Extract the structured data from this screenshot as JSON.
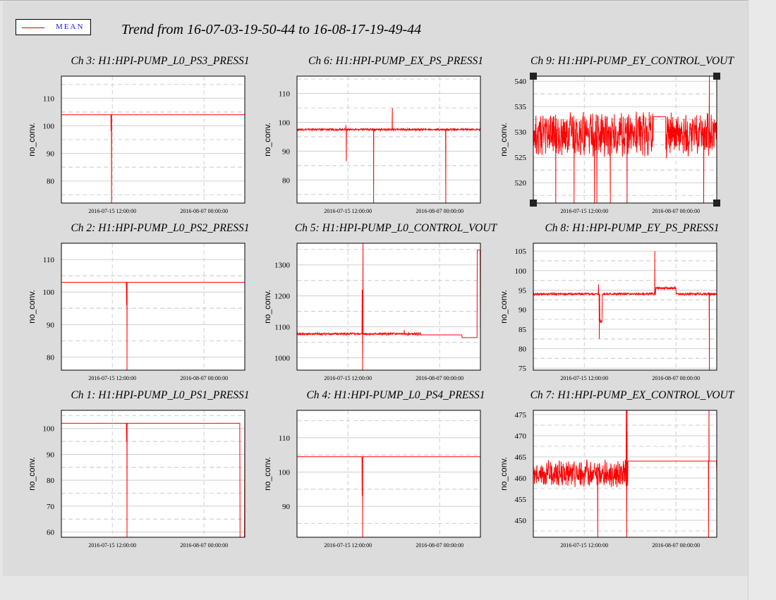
{
  "title": "Trend from 16-07-03-19-50-44 to 16-08-17-19-49-44",
  "legend": {
    "label": "MEAN",
    "color": "#d00000"
  },
  "colors": {
    "trace": "#ff0000",
    "grid": "#cfcfcf",
    "panel": "#dcdcdc"
  },
  "chart_data": [
    {
      "type": "line",
      "title": "Ch 3: H1:HPI-PUMP_L0_PS3_PRESS1",
      "ylabel": "no_conv.",
      "xticks": [
        "2016-07-15 12:00:00",
        "2016-08-07 00:00:00"
      ],
      "xlim": [
        0,
        45
      ],
      "ylim": [
        72,
        118
      ],
      "yticks": [
        80,
        90,
        100,
        110
      ],
      "grid": true,
      "series": [
        {
          "baseline": 104,
          "noise": 0,
          "spikes": [
            [
              12.2,
              98
            ],
            [
              12.3,
              72
            ],
            [
              12.4,
              104
            ]
          ],
          "steps": []
        }
      ]
    },
    {
      "type": "line",
      "title": "Ch 6: H1:HPI-PUMP_EX_PS_PRESS1",
      "ylabel": "no_conv.",
      "xticks": [
        "2016-07-15 12:00:00",
        "2016-08-07 00:00:00"
      ],
      "xlim": [
        0,
        45
      ],
      "ylim": [
        72,
        116
      ],
      "yticks": [
        80,
        90,
        100,
        110
      ],
      "grid": true,
      "series": [
        {
          "baseline": 97.5,
          "noise": 0.3,
          "spikes": [
            [
              12.0,
              99
            ],
            [
              12.1,
              86.5
            ],
            [
              12.2,
              97.5
            ],
            [
              18.8,
              72
            ],
            [
              23.4,
              105
            ],
            [
              36.5,
              72
            ]
          ],
          "steps": []
        }
      ]
    },
    {
      "type": "line",
      "title": "Ch 9: H1:HPI-PUMP_EY_CONTROL_VOUT",
      "ylabel": "no_conv.",
      "xticks": [
        "2016-07-15 12:00:00",
        "2016-08-07 00:00:00"
      ],
      "xlim": [
        0,
        45
      ],
      "ylim": [
        516,
        541
      ],
      "yticks": [
        520,
        525,
        530,
        535,
        540
      ],
      "grid": true,
      "selected": true,
      "series": [
        {
          "baseline": 529.5,
          "noise": 3.5,
          "spikes": [
            [
              5.5,
              516
            ],
            [
              10,
              516
            ],
            [
              15,
              516
            ],
            [
              15.6,
              516
            ],
            [
              18.9,
              516
            ],
            [
              23,
              516
            ],
            [
              41.8,
              516
            ],
            [
              43.2,
              541
            ]
          ],
          "steps": [
            [
              29.4,
              32.5,
              533
            ]
          ]
        }
      ]
    },
    {
      "type": "line",
      "title": "Ch 2: H1:HPI-PUMP_L0_PS2_PRESS1",
      "ylabel": "no_conv.",
      "xticks": [
        "2016-07-15 12:00:00",
        "2016-08-07 00:00:00"
      ],
      "xlim": [
        0,
        45
      ],
      "ylim": [
        76,
        115
      ],
      "yticks": [
        80,
        90,
        100,
        110
      ],
      "grid": true,
      "series": [
        {
          "baseline": 103,
          "noise": 0,
          "spikes": [
            [
              16.0,
              96
            ],
            [
              16.1,
              76
            ],
            [
              16.2,
              103
            ]
          ],
          "steps": []
        }
      ]
    },
    {
      "type": "line",
      "title": "Ch 5: H1:HPI-PUMP_L0_CONTROL_VOUT",
      "ylabel": "no_conv.",
      "xticks": [
        "2016-07-15 12:00:00",
        "2016-08-07 00:00:00"
      ],
      "xlim": [
        0,
        45
      ],
      "ylim": [
        960,
        1370
      ],
      "yticks": [
        1000,
        1100,
        1200,
        1300
      ],
      "grid": true,
      "series": [
        {
          "baseline": 1077,
          "noise": 3,
          "spikes": [
            [
              16.0,
              1220
            ],
            [
              16.1,
              960
            ],
            [
              16.2,
              1370
            ],
            [
              16.3,
              1077
            ],
            [
              26.3,
              1090
            ]
          ],
          "steps": [
            [
              30.5,
              40.5,
              1074
            ],
            [
              40.5,
              44.2,
              1065
            ],
            [
              44.2,
              45,
              1348
            ]
          ]
        }
      ]
    },
    {
      "type": "line",
      "title": "Ch 8: H1:HPI-PUMP_EY_PS_PRESS1",
      "ylabel": "no_conv.",
      "xticks": [
        "2016-07-15 12:00:00",
        "2016-08-07 00:00:00"
      ],
      "xlim": [
        0,
        45
      ],
      "ylim": [
        74.5,
        107
      ],
      "yticks": [
        75,
        80,
        85,
        90,
        95,
        100,
        105
      ],
      "grid": true,
      "series": [
        {
          "baseline": 94,
          "noise": 0.25,
          "spikes": [
            [
              16.0,
              96.5
            ],
            [
              16.2,
              82.5
            ],
            [
              16.4,
              87.5
            ],
            [
              29.8,
              105
            ],
            [
              43.2,
              74.5
            ]
          ],
          "steps": [
            [
              16.3,
              16.9,
              87
            ],
            [
              30.0,
              35.0,
              95.5
            ]
          ]
        }
      ]
    },
    {
      "type": "line",
      "title": "Ch 1: H1:HPI-PUMP_L0_PS1_PRESS1",
      "ylabel": "no_conv.",
      "xticks": [
        "2016-07-15 12:00:00",
        "2016-08-07 00:00:00"
      ],
      "xlim": [
        0,
        45
      ],
      "ylim": [
        58,
        107
      ],
      "yticks": [
        60,
        70,
        80,
        90,
        100
      ],
      "grid": true,
      "series": [
        {
          "baseline": 102,
          "noise": 0,
          "spikes": [
            [
              16.0,
              95
            ],
            [
              16.1,
              58
            ],
            [
              16.2,
              102
            ]
          ],
          "steps": [
            [
              43.8,
              45,
              58
            ]
          ]
        }
      ]
    },
    {
      "type": "line",
      "title": "Ch 4: H1:HPI-PUMP_L0_PS4_PRESS1",
      "ylabel": "no_conv.",
      "xticks": [
        "2016-07-15 12:00:00",
        "2016-08-07 00:00:00"
      ],
      "xlim": [
        0,
        45
      ],
      "ylim": [
        81,
        118
      ],
      "yticks": [
        90,
        100,
        110
      ],
      "grid": true,
      "series": [
        {
          "baseline": 104.5,
          "noise": 0,
          "spikes": [
            [
              16.0,
              93
            ],
            [
              16.1,
              81
            ],
            [
              16.2,
              104.5
            ]
          ],
          "steps": []
        }
      ]
    },
    {
      "type": "line",
      "title": "Ch 7: H1:HPI-PUMP_EX_CONTROL_VOUT",
      "ylabel": "no_conv.",
      "xticks": [
        "2016-07-15 12:00:00",
        "2016-08-07 00:00:00"
      ],
      "xlim": [
        0,
        45
      ],
      "ylim": [
        446,
        476
      ],
      "yticks": [
        450,
        455,
        460,
        465,
        470,
        475
      ],
      "grid": true,
      "series": [
        {
          "baseline": 461,
          "noise": 2.5,
          "spikes": [
            [
              15.8,
              446
            ],
            [
              22.8,
              476
            ],
            [
              22.9,
              446
            ],
            [
              23.0,
              476
            ],
            [
              43.0,
              446
            ],
            [
              43.1,
              476
            ]
          ],
          "steps": [
            [
              23.2,
              45,
              464
            ]
          ]
        }
      ]
    }
  ]
}
